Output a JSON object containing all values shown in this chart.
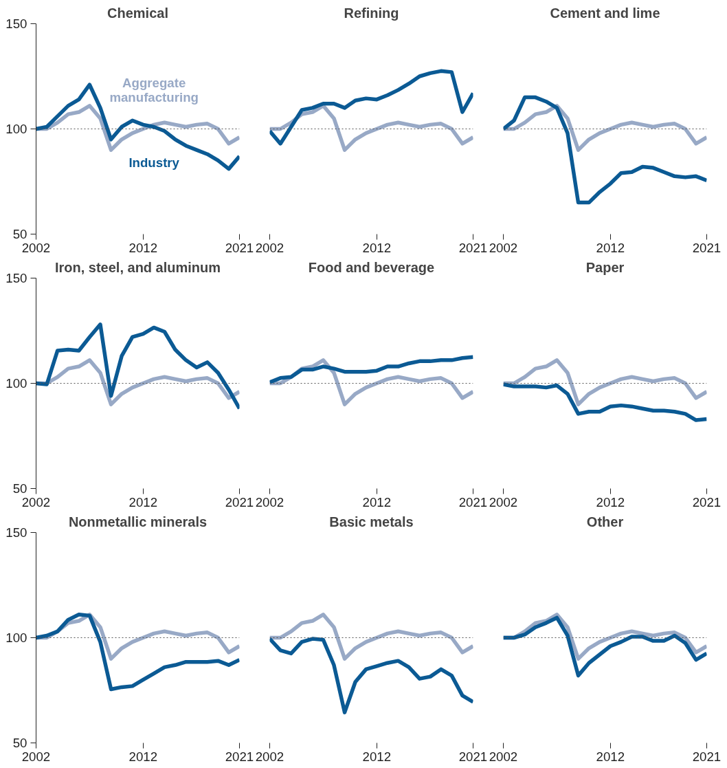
{
  "chart_data": [
    {
      "type": "line",
      "title": "Chemical",
      "x": [
        2002,
        2003,
        2004,
        2005,
        2006,
        2007,
        2008,
        2009,
        2010,
        2011,
        2012,
        2013,
        2014,
        2015,
        2016,
        2017,
        2018,
        2019,
        2020,
        2021
      ],
      "xlim": [
        2002,
        2021
      ],
      "xticks": [
        2002,
        2012,
        2021
      ],
      "ylim": [
        50,
        150
      ],
      "yticks": [
        50,
        100,
        150
      ],
      "grid": false,
      "legend": false,
      "line_style": "solid",
      "marker": "none",
      "ref_lines": [
        {
          "axis": "y",
          "value": 100,
          "color": "#555555",
          "line_style": "dotted"
        }
      ],
      "series": [
        {
          "name": "Aggregate manufacturing",
          "color": "#98a9c6",
          "values": [
            100,
            100,
            103,
            107,
            108,
            111,
            105,
            90,
            95,
            98,
            100,
            102,
            103,
            102,
            101,
            102,
            102.5,
            100,
            93,
            96
          ]
        },
        {
          "name": "Industry",
          "color": "#0b5a94",
          "values": [
            100,
            101,
            106,
            111,
            114,
            121,
            110,
            95,
            101,
            104,
            102,
            101,
            99,
            95,
            92,
            90,
            88,
            85,
            81,
            87
          ]
        }
      ]
    },
    {
      "type": "line",
      "title": "Refining",
      "x": [
        2002,
        2003,
        2004,
        2005,
        2006,
        2007,
        2008,
        2009,
        2010,
        2011,
        2012,
        2013,
        2014,
        2015,
        2016,
        2017,
        2018,
        2019,
        2020,
        2021
      ],
      "xlim": [
        2002,
        2021
      ],
      "xticks": [
        2002,
        2012,
        2021
      ],
      "ylim": [
        50,
        150
      ],
      "yticks": [
        50,
        100,
        150
      ],
      "tick_labels": "x",
      "grid": false,
      "legend": false,
      "line_style": "solid",
      "marker": "none",
      "ref_lines": [
        {
          "axis": "y",
          "value": 100,
          "color": "#555555",
          "line_style": "dotted"
        }
      ],
      "series": [
        {
          "color": "#98a9c6",
          "values": [
            100,
            100,
            103,
            107,
            108,
            111,
            105,
            90,
            95,
            98,
            100,
            102,
            103,
            102,
            101,
            102,
            102.5,
            100,
            93,
            96
          ]
        },
        {
          "color": "#0b5a94",
          "values": [
            99,
            93,
            101,
            109,
            110,
            112,
            112,
            110,
            113.5,
            114.5,
            114,
            116,
            118.5,
            121.5,
            125,
            126.5,
            127.5,
            127,
            108,
            117
          ]
        }
      ]
    },
    {
      "type": "line",
      "title": "Cement and lime",
      "x": [
        2002,
        2003,
        2004,
        2005,
        2006,
        2007,
        2008,
        2009,
        2010,
        2011,
        2012,
        2013,
        2014,
        2015,
        2016,
        2017,
        2018,
        2019,
        2020,
        2021
      ],
      "xlim": [
        2002,
        2021
      ],
      "xticks": [
        2002,
        2012,
        2021
      ],
      "ylim": [
        50,
        150
      ],
      "yticks": [
        50,
        100,
        150
      ],
      "tick_labels": "x",
      "grid": false,
      "legend": false,
      "line_style": "solid",
      "marker": "none",
      "ref_lines": [
        {
          "axis": "y",
          "value": 100,
          "color": "#555555",
          "line_style": "dotted"
        }
      ],
      "series": [
        {
          "color": "#98a9c6",
          "values": [
            100,
            100,
            103,
            107,
            108,
            111,
            105,
            90,
            95,
            98,
            100,
            102,
            103,
            102,
            101,
            102,
            102.5,
            100,
            93,
            96
          ]
        },
        {
          "color": "#0b5a94",
          "values": [
            100,
            104,
            115,
            115,
            113,
            110,
            98,
            65,
            65,
            70,
            74,
            79,
            79.5,
            82,
            81.5,
            79.5,
            77.5,
            77,
            77.5,
            75.5
          ]
        }
      ]
    },
    {
      "type": "line",
      "title": "Iron, steel, and aluminum",
      "x": [
        2002,
        2003,
        2004,
        2005,
        2006,
        2007,
        2008,
        2009,
        2010,
        2011,
        2012,
        2013,
        2014,
        2015,
        2016,
        2017,
        2018,
        2019,
        2020,
        2021
      ],
      "xlim": [
        2002,
        2021
      ],
      "xticks": [
        2002,
        2012,
        2021
      ],
      "ylim": [
        50,
        150
      ],
      "yticks": [
        50,
        100,
        150
      ],
      "grid": false,
      "legend": false,
      "line_style": "solid",
      "marker": "none",
      "ref_lines": [
        {
          "axis": "y",
          "value": 100,
          "color": "#555555",
          "line_style": "dotted"
        }
      ],
      "series": [
        {
          "color": "#98a9c6",
          "values": [
            100,
            100,
            103,
            107,
            108,
            111,
            105,
            90,
            95,
            98,
            100,
            102,
            103,
            102,
            101,
            102,
            102.5,
            100,
            93,
            96
          ]
        },
        {
          "color": "#0b5a94",
          "values": [
            100,
            99.5,
            115.5,
            116,
            115.5,
            122,
            128,
            94,
            113,
            122,
            123.5,
            126.5,
            124.5,
            116,
            111,
            107.5,
            110,
            105,
            97,
            88
          ]
        }
      ]
    },
    {
      "type": "line",
      "title": "Food and beverage",
      "x": [
        2002,
        2003,
        2004,
        2005,
        2006,
        2007,
        2008,
        2009,
        2010,
        2011,
        2012,
        2013,
        2014,
        2015,
        2016,
        2017,
        2018,
        2019,
        2020,
        2021
      ],
      "xlim": [
        2002,
        2021
      ],
      "xticks": [
        2002,
        2012,
        2021
      ],
      "ylim": [
        50,
        150
      ],
      "yticks": [
        50,
        100,
        150
      ],
      "tick_labels": "x",
      "grid": false,
      "legend": false,
      "line_style": "solid",
      "marker": "none",
      "ref_lines": [
        {
          "axis": "y",
          "value": 100,
          "color": "#555555",
          "line_style": "dotted"
        }
      ],
      "series": [
        {
          "color": "#98a9c6",
          "values": [
            100,
            100,
            103,
            107,
            108,
            111,
            105,
            90,
            95,
            98,
            100,
            102,
            103,
            102,
            101,
            102,
            102.5,
            100,
            93,
            96
          ]
        },
        {
          "color": "#0b5a94",
          "values": [
            100.5,
            102.5,
            103,
            106.5,
            106.5,
            108,
            107,
            105.5,
            105.5,
            105.5,
            106,
            108,
            108,
            109.5,
            110.5,
            110.5,
            111,
            111,
            112,
            112.5
          ]
        }
      ]
    },
    {
      "type": "line",
      "title": "Paper",
      "x": [
        2002,
        2003,
        2004,
        2005,
        2006,
        2007,
        2008,
        2009,
        2010,
        2011,
        2012,
        2013,
        2014,
        2015,
        2016,
        2017,
        2018,
        2019,
        2020,
        2021
      ],
      "xlim": [
        2002,
        2021
      ],
      "xticks": [
        2002,
        2012,
        2021
      ],
      "ylim": [
        50,
        150
      ],
      "yticks": [
        50,
        100,
        150
      ],
      "tick_labels": "x",
      "grid": false,
      "legend": false,
      "line_style": "solid",
      "marker": "none",
      "ref_lines": [
        {
          "axis": "y",
          "value": 100,
          "color": "#555555",
          "line_style": "dotted"
        }
      ],
      "series": [
        {
          "color": "#98a9c6",
          "values": [
            100,
            100,
            103,
            107,
            108,
            111,
            105,
            90,
            95,
            98,
            100,
            102,
            103,
            102,
            101,
            102,
            102.5,
            100,
            93,
            96
          ]
        },
        {
          "color": "#0b5a94",
          "values": [
            99.5,
            98.5,
            98.5,
            98.5,
            98,
            99,
            95,
            85.5,
            86.5,
            86.5,
            89,
            89.5,
            89,
            88,
            87,
            87,
            86.5,
            85.5,
            82.5,
            83
          ]
        }
      ]
    },
    {
      "type": "line",
      "title": "Nonmetallic minerals",
      "x": [
        2002,
        2003,
        2004,
        2005,
        2006,
        2007,
        2008,
        2009,
        2010,
        2011,
        2012,
        2013,
        2014,
        2015,
        2016,
        2017,
        2018,
        2019,
        2020,
        2021
      ],
      "xlim": [
        2002,
        2021
      ],
      "xticks": [
        2002,
        2012,
        2021
      ],
      "ylim": [
        50,
        150
      ],
      "yticks": [
        50,
        100,
        150
      ],
      "grid": false,
      "legend": false,
      "line_style": "solid",
      "marker": "none",
      "ref_lines": [
        {
          "axis": "y",
          "value": 100,
          "color": "#555555",
          "line_style": "dotted"
        }
      ],
      "series": [
        {
          "color": "#98a9c6",
          "values": [
            100,
            100,
            103,
            107,
            108,
            111,
            105,
            90,
            95,
            98,
            100,
            102,
            103,
            102,
            101,
            102,
            102.5,
            100,
            93,
            96
          ]
        },
        {
          "color": "#0b5a94",
          "values": [
            100,
            101,
            103,
            108.5,
            111,
            110.5,
            98,
            75.5,
            76.5,
            77,
            80,
            83,
            86,
            87,
            88.5,
            88.5,
            88.5,
            89,
            87,
            89.5
          ]
        }
      ]
    },
    {
      "type": "line",
      "title": "Basic metals",
      "x": [
        2002,
        2003,
        2004,
        2005,
        2006,
        2007,
        2008,
        2009,
        2010,
        2011,
        2012,
        2013,
        2014,
        2015,
        2016,
        2017,
        2018,
        2019,
        2020,
        2021
      ],
      "xlim": [
        2002,
        2021
      ],
      "xticks": [
        2002,
        2012,
        2021
      ],
      "ylim": [
        50,
        150
      ],
      "yticks": [
        50,
        100,
        150
      ],
      "tick_labels": "x",
      "grid": false,
      "legend": false,
      "line_style": "solid",
      "marker": "none",
      "ref_lines": [
        {
          "axis": "y",
          "value": 100,
          "color": "#555555",
          "line_style": "dotted"
        }
      ],
      "series": [
        {
          "color": "#98a9c6",
          "values": [
            100,
            100,
            103,
            107,
            108,
            111,
            105,
            90,
            95,
            98,
            100,
            102,
            103,
            102,
            101,
            102,
            102.5,
            100,
            93,
            96
          ]
        },
        {
          "color": "#0b5a94",
          "values": [
            99.5,
            94,
            92.5,
            98,
            99.5,
            99,
            87,
            64.5,
            79,
            85,
            86.5,
            88,
            89,
            86,
            80.5,
            81.5,
            85,
            82,
            72.5,
            69.5
          ]
        }
      ]
    },
    {
      "type": "line",
      "title": "Other",
      "x": [
        2002,
        2003,
        2004,
        2005,
        2006,
        2007,
        2008,
        2009,
        2010,
        2011,
        2012,
        2013,
        2014,
        2015,
        2016,
        2017,
        2018,
        2019,
        2020,
        2021
      ],
      "xlim": [
        2002,
        2021
      ],
      "xticks": [
        2002,
        2012,
        2021
      ],
      "ylim": [
        50,
        150
      ],
      "yticks": [
        50,
        100,
        150
      ],
      "tick_labels": "x",
      "grid": false,
      "legend": false,
      "line_style": "solid",
      "marker": "none",
      "ref_lines": [
        {
          "axis": "y",
          "value": 100,
          "color": "#555555",
          "line_style": "dotted"
        }
      ],
      "series": [
        {
          "color": "#98a9c6",
          "values": [
            100,
            100,
            103,
            107,
            108,
            111,
            105,
            90,
            95,
            98,
            100,
            102,
            103,
            102,
            101,
            102,
            102.5,
            100,
            93,
            96
          ]
        },
        {
          "color": "#0b5a94",
          "values": [
            100,
            100,
            101.5,
            105,
            107,
            109.5,
            101,
            82,
            88,
            92,
            96,
            98,
            100.5,
            100.5,
            98.5,
            98.5,
            101,
            97.5,
            89.5,
            92.5
          ]
        }
      ]
    }
  ]
}
